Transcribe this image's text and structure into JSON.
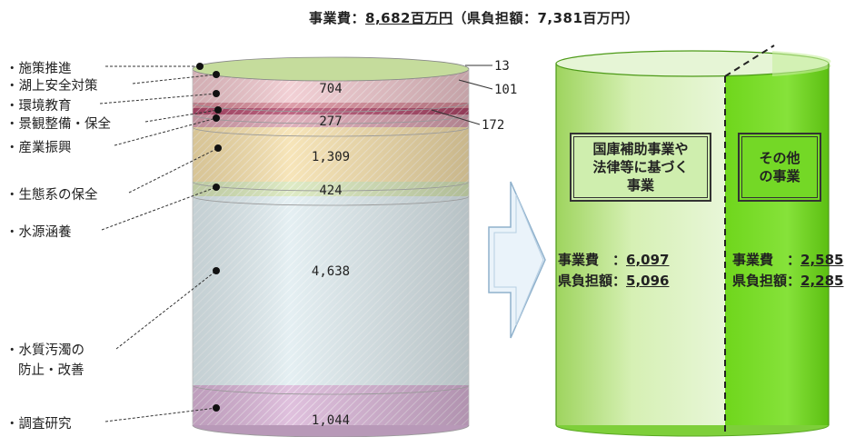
{
  "header": {
    "prefix": "事業費：",
    "total": "8,682百万円",
    "suffix": "（県負担額：7,381百万円）"
  },
  "left_labels": [
    {
      "id": "sesaku",
      "text": "・施策推進"
    },
    {
      "id": "kojo",
      "text": "・湖上安全対策"
    },
    {
      "id": "kankyo",
      "text": "・環境教育"
    },
    {
      "id": "keikan",
      "text": "・景観整備・保全"
    },
    {
      "id": "sangyo",
      "text": "・産業振興"
    },
    {
      "id": "seitai",
      "text": "・生態系の保全"
    },
    {
      "id": "suigen",
      "text": "・水源涵養"
    },
    {
      "id": "suishitsu_1",
      "text": "・水質汚濁の"
    },
    {
      "id": "suishitsu_2",
      "text": "防止・改善"
    },
    {
      "id": "chosa",
      "text": "・調査研究"
    }
  ],
  "segments": [
    {
      "name": "施策推進",
      "value": "13",
      "color": "#c5dc9c"
    },
    {
      "name": "湖上安全対策",
      "value": "704",
      "color": "#efc6cc"
    },
    {
      "name": "環境教育",
      "value": "101",
      "color": "#d68a98"
    },
    {
      "name": "景観整備・保全",
      "value": "172",
      "color": "#b0486a"
    },
    {
      "name": "景観整備・保全(2)",
      "value": "277",
      "color": "#d8a0ae"
    },
    {
      "name": "産業振興",
      "value": "1,309",
      "color": "#f5dfaa"
    },
    {
      "name": "生態系の保全",
      "value": "424",
      "color": "#d7e6b8"
    },
    {
      "name": "水源涵養",
      "value": "4,638",
      "color": "#dfecf0"
    },
    {
      "name": "調査研究",
      "value": "1,044",
      "color": "#d8b3d6"
    }
  ],
  "right_labels": {
    "v13": "13",
    "v101": "101",
    "v172": "172"
  },
  "right_cylinder": {
    "left_box": [
      "国庫補助事業や",
      "法律等に基づく",
      "事業"
    ],
    "right_box": [
      "その他",
      "の事業"
    ],
    "left_summary": {
      "cost_label": "事業費　：",
      "cost_value": "6,097",
      "burden_label": "県負担額：",
      "burden_value": "5,096"
    },
    "right_summary": {
      "cost_label": "事業費　：",
      "cost_value": "2,585",
      "burden_label": "県負担額：",
      "burden_value": "2,285"
    },
    "colors": {
      "light": "#c7e89a",
      "dark": "#6fd61c",
      "dark_top": "#b5ec82"
    }
  }
}
